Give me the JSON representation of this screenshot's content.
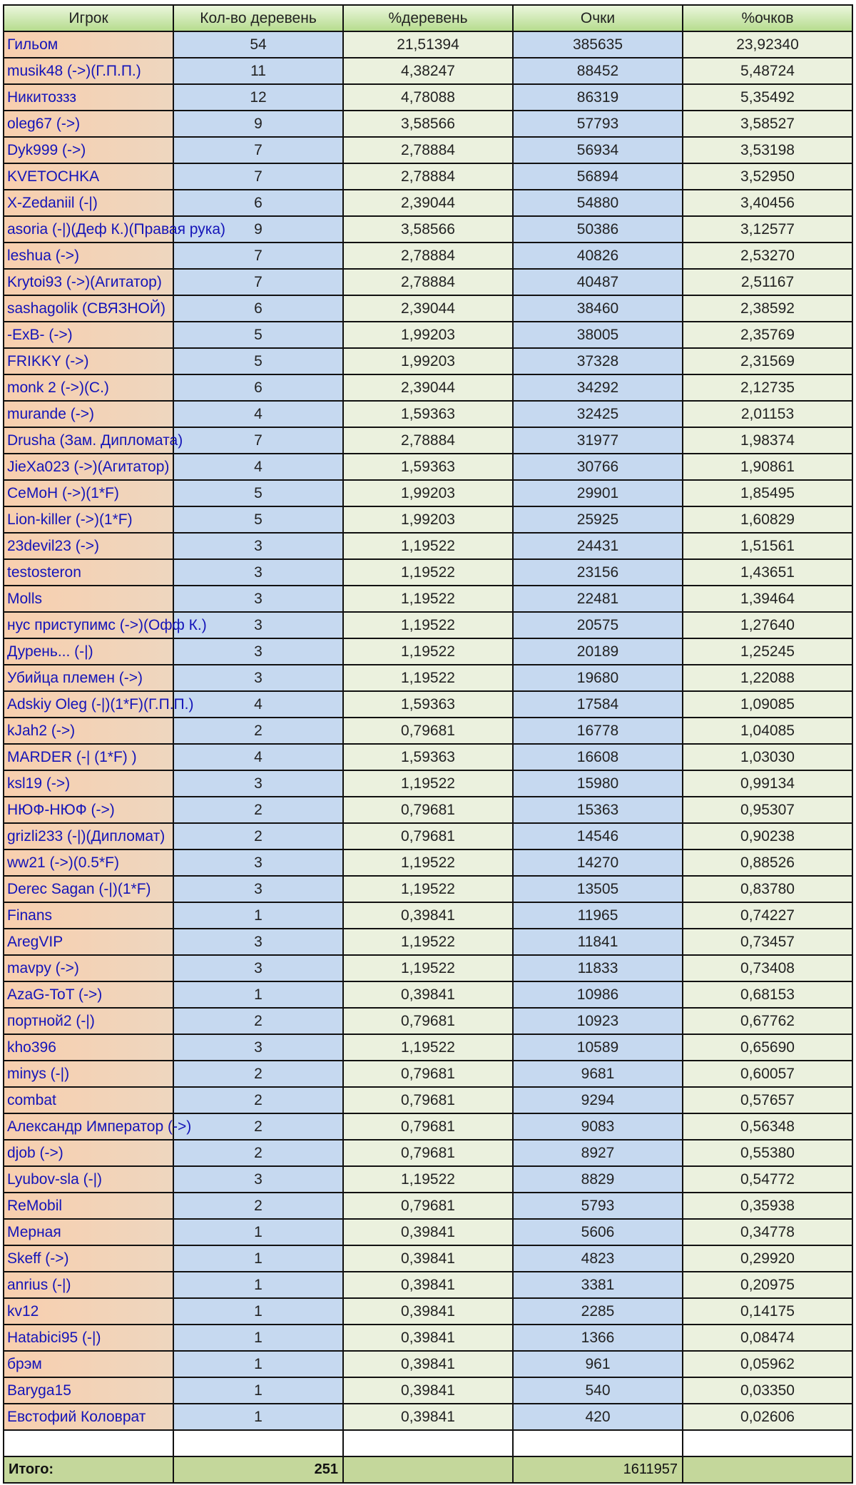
{
  "headers": [
    "Игрок",
    "Кол-во деревень",
    "%деревень",
    "Очки",
    "%очков"
  ],
  "rows": [
    [
      "Гильом",
      "54",
      "21,51394",
      "385635",
      "23,92340"
    ],
    [
      "musik48 (->)(Г.П.П.)",
      "11",
      "4,38247",
      "88452",
      "5,48724"
    ],
    [
      "Никитоззз",
      "12",
      "4,78088",
      "86319",
      "5,35492"
    ],
    [
      "oleg67 (->)",
      "9",
      "3,58566",
      "57793",
      "3,58527"
    ],
    [
      "Dyk999 (->)",
      "7",
      "2,78884",
      "56934",
      "3,53198"
    ],
    [
      "KVETOCHKA",
      "7",
      "2,78884",
      "56894",
      "3,52950"
    ],
    [
      "X-Zedaniil (-|)",
      "6",
      "2,39044",
      "54880",
      "3,40456"
    ],
    [
      "asoria (-|)(Деф К.)(Правая рука)",
      "9",
      "3,58566",
      "50386",
      "3,12577"
    ],
    [
      "leshua (->)",
      "7",
      "2,78884",
      "40826",
      "2,53270"
    ],
    [
      "Krytoi93 (->)(Агитатор)",
      "7",
      "2,78884",
      "40487",
      "2,51167"
    ],
    [
      "sashagolik (СВЯЗНОЙ)",
      "6",
      "2,39044",
      "38460",
      "2,38592"
    ],
    [
      "-ExB- (->)",
      "5",
      "1,99203",
      "38005",
      "2,35769"
    ],
    [
      "FRIKKY (->)",
      "5",
      "1,99203",
      "37328",
      "2,31569"
    ],
    [
      "monk 2 (->)(С.)",
      "6",
      "2,39044",
      "34292",
      "2,12735"
    ],
    [
      "murande (->)",
      "4",
      "1,59363",
      "32425",
      "2,01153"
    ],
    [
      "Drusha (Зам. Дипломата)",
      "7",
      "2,78884",
      "31977",
      "1,98374"
    ],
    [
      "JieXa023 (->)(Агитатор)",
      "4",
      "1,59363",
      "30766",
      "1,90861"
    ],
    [
      "CeMoH (->)(1*F)",
      "5",
      "1,99203",
      "29901",
      "1,85495"
    ],
    [
      "Lion-killer (->)(1*F)",
      "5",
      "1,99203",
      "25925",
      "1,60829"
    ],
    [
      "23devil23 (->)",
      "3",
      "1,19522",
      "24431",
      "1,51561"
    ],
    [
      "testosteron",
      "3",
      "1,19522",
      "23156",
      "1,43651"
    ],
    [
      "Molls",
      "3",
      "1,19522",
      "22481",
      "1,39464"
    ],
    [
      "нус приступимс (->)(Офф К.)",
      "3",
      "1,19522",
      "20575",
      "1,27640"
    ],
    [
      "Дурень... (-|)",
      "3",
      "1,19522",
      "20189",
      "1,25245"
    ],
    [
      "Убийца племен (->)",
      "3",
      "1,19522",
      "19680",
      "1,22088"
    ],
    [
      "Adskiy Oleg (-|)(1*F)(Г.П.П.)",
      "4",
      "1,59363",
      "17584",
      "1,09085"
    ],
    [
      "kJah2 (->)",
      "2",
      "0,79681",
      "16778",
      "1,04085"
    ],
    [
      "MARDER (-| (1*F) )",
      "4",
      "1,59363",
      "16608",
      "1,03030"
    ],
    [
      "ksl19 (->)",
      "3",
      "1,19522",
      "15980",
      "0,99134"
    ],
    [
      "НЮФ-НЮФ (->)",
      "2",
      "0,79681",
      "15363",
      "0,95307"
    ],
    [
      "grizli233 (-|)(Дипломат)",
      "2",
      "0,79681",
      "14546",
      "0,90238"
    ],
    [
      "ww21 (->)(0.5*F)",
      "3",
      "1,19522",
      "14270",
      "0,88526"
    ],
    [
      "Derec Sagan (-|)(1*F)",
      "3",
      "1,19522",
      "13505",
      "0,83780"
    ],
    [
      "Finans",
      "1",
      "0,39841",
      "11965",
      "0,74227"
    ],
    [
      "AregVIP",
      "3",
      "1,19522",
      "11841",
      "0,73457"
    ],
    [
      "mavpy (->)",
      "3",
      "1,19522",
      "11833",
      "0,73408"
    ],
    [
      "AzaG-ToT (->)",
      "1",
      "0,39841",
      "10986",
      "0,68153"
    ],
    [
      "портной2 (-|)",
      "2",
      "0,79681",
      "10923",
      "0,67762"
    ],
    [
      "kho396",
      "3",
      "1,19522",
      "10589",
      "0,65690"
    ],
    [
      "minys (-|)",
      "2",
      "0,79681",
      "9681",
      "0,60057"
    ],
    [
      "combat",
      "2",
      "0,79681",
      "9294",
      "0,57657"
    ],
    [
      "Александр Император (->)",
      "2",
      "0,79681",
      "9083",
      "0,56348"
    ],
    [
      "djob (->)",
      "2",
      "0,79681",
      "8927",
      "0,55380"
    ],
    [
      "Lyubov-sla (-|)",
      "3",
      "1,19522",
      "8829",
      "0,54772"
    ],
    [
      "ReMobil",
      "2",
      "0,79681",
      "5793",
      "0,35938"
    ],
    [
      "Мерная",
      "1",
      "0,39841",
      "5606",
      "0,34778"
    ],
    [
      "Skeff (->)",
      "1",
      "0,39841",
      "4823",
      "0,29920"
    ],
    [
      "anrius (-|)",
      "1",
      "0,39841",
      "3381",
      "0,20975"
    ],
    [
      "kv12",
      "1",
      "0,39841",
      "2285",
      "0,14175"
    ],
    [
      "Hatabici95 (-|)",
      "1",
      "0,39841",
      "1366",
      "0,08474"
    ],
    [
      "брэм",
      "1",
      "0,39841",
      "961",
      "0,05962"
    ],
    [
      "Baryga15",
      "1",
      "0,39841",
      "540",
      "0,03350"
    ],
    [
      "Евстофий Коловрат",
      "1",
      "0,39841",
      "420",
      "0,02606"
    ]
  ],
  "total": {
    "label": "Итого:",
    "villages": "251",
    "points": "1611957"
  }
}
